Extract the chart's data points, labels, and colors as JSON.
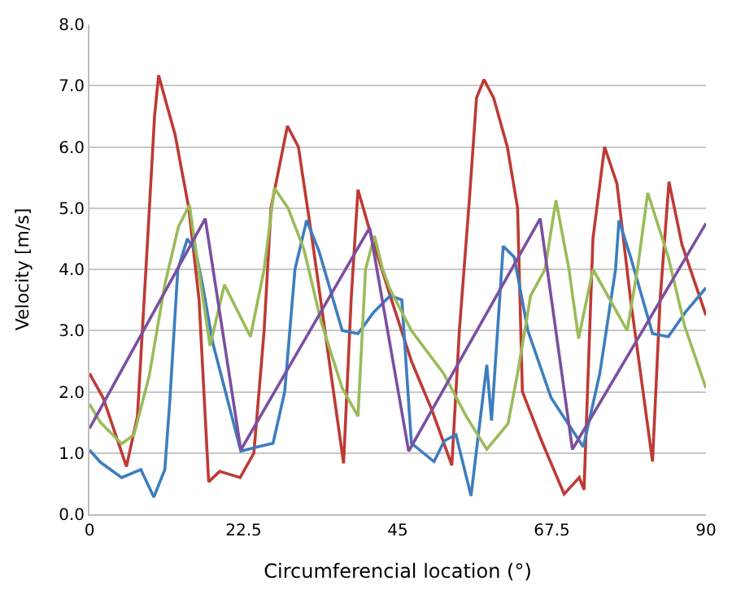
{
  "chart_data": {
    "type": "line",
    "xlabel": "Circumferencial location (°)",
    "ylabel": "Velocity [m/s]",
    "xlim": [
      0,
      90
    ],
    "xticks": [
      0,
      22.5,
      45,
      67.5,
      90
    ],
    "ylim": [
      0,
      8
    ],
    "yticks": [
      {
        "value": 0,
        "label": "0.0"
      },
      {
        "value": 1,
        "label": "1.0"
      },
      {
        "value": 2,
        "label": "2.0"
      },
      {
        "value": 3,
        "label": "3.0"
      },
      {
        "value": 4,
        "label": "4.0"
      },
      {
        "value": 5,
        "label": "5.0"
      },
      {
        "value": 6,
        "label": "6.0"
      },
      {
        "value": 7,
        "label": "7.0"
      },
      {
        "value": 8,
        "label": "8.0"
      }
    ],
    "grid": "y",
    "marker": "none",
    "line_style": "solid",
    "series": [
      {
        "color": "#be3a34",
        "x": [
          0,
          2,
          5.4,
          7,
          8.5,
          9.5,
          10.1,
          11,
          12.5,
          14.5,
          16,
          17.4,
          19,
          22,
          24,
          25.5,
          26.5,
          28.9,
          30.5,
          32.5,
          35,
          37.1,
          38.2,
          39.2,
          41,
          43.9,
          47,
          50,
          52.9,
          54,
          55.5,
          56.5,
          57.6,
          59,
          61,
          62.5,
          63.2,
          66,
          69.3,
          71.5,
          72.2,
          73.5,
          75.2,
          77,
          79,
          82.2,
          83.3,
          84.6,
          86.5,
          90
        ],
        "values": [
          2.3,
          1.9,
          0.78,
          1.6,
          4.5,
          6.5,
          7.17,
          6.8,
          6.2,
          5,
          3.5,
          0.53,
          0.7,
          0.6,
          1.0,
          3.0,
          5.0,
          6.34,
          6.0,
          4.5,
          2.5,
          0.83,
          3.5,
          5.3,
          4.6,
          3.57,
          2.5,
          1.7,
          0.8,
          3.0,
          5.2,
          6.8,
          7.1,
          6.8,
          6.0,
          5.0,
          2.0,
          1.2,
          0.33,
          0.6,
          0.4,
          4.5,
          6.0,
          5.4,
          3.5,
          0.86,
          3.5,
          5.43,
          4.4,
          3.25
        ]
      },
      {
        "color": "#3d7dbf",
        "x": [
          0,
          1.6,
          4.7,
          7.5,
          9.4,
          11,
          11.7,
          12.9,
          14.3,
          15.5,
          16.5,
          18,
          22.1,
          24.5,
          26.8,
          28.5,
          30,
          31.7,
          33.5,
          36.9,
          39.2,
          41.5,
          43.9,
          45.6,
          47,
          50.3,
          51.8,
          53.5,
          55.7,
          58,
          58.7,
          60.4,
          62,
          64,
          67.4,
          72.1,
          74.5,
          76.8,
          77.3,
          79,
          82.2,
          84.5,
          87,
          90
        ],
        "values": [
          1.05,
          0.85,
          0.6,
          0.73,
          0.28,
          0.73,
          1.8,
          4.0,
          4.5,
          4.3,
          3.75,
          2.8,
          1.03,
          1.1,
          1.16,
          2.0,
          4.0,
          4.8,
          4.3,
          3.0,
          2.95,
          3.3,
          3.57,
          3.5,
          1.16,
          0.86,
          1.2,
          1.3,
          0.3,
          2.44,
          1.53,
          4.38,
          4.2,
          3.0,
          1.9,
          1.1,
          2.3,
          4.0,
          4.8,
          4.2,
          2.95,
          2.9,
          3.3,
          3.7
        ]
      },
      {
        "color": "#9bbb59",
        "x": [
          0,
          1.6,
          4.7,
          6.5,
          8.7,
          11,
          13,
          14.6,
          15.8,
          17.6,
          19.7,
          23.5,
          25.5,
          27,
          29,
          31.3,
          33.8,
          36.9,
          39.2,
          40.3,
          41.6,
          42.8,
          43.9,
          47,
          51.7,
          55,
          58,
          61.1,
          62.5,
          64.4,
          66.5,
          68.1,
          70,
          71.4,
          73.5,
          78.5,
          80,
          81.5,
          84.5,
          86.9,
          90
        ],
        "values": [
          1.8,
          1.5,
          1.15,
          1.3,
          2.25,
          3.75,
          4.7,
          5.05,
          4.1,
          2.75,
          3.75,
          2.9,
          4.0,
          5.33,
          5.0,
          4.33,
          3.15,
          2.06,
          1.6,
          4.0,
          4.55,
          4.0,
          3.67,
          3.0,
          2.3,
          1.6,
          1.06,
          1.48,
          2.3,
          3.57,
          4.0,
          5.13,
          4.0,
          2.87,
          4.0,
          3.0,
          4.0,
          5.25,
          4.2,
          3.07,
          2.06
        ]
      },
      {
        "color": "#7b4fa0",
        "x": [
          0,
          16.9,
          22.1,
          40.9,
          46.6,
          65.8,
          70.5,
          90
        ],
        "values": [
          1.4,
          4.83,
          1.05,
          4.68,
          1.03,
          4.83,
          1.06,
          4.75
        ]
      }
    ]
  }
}
